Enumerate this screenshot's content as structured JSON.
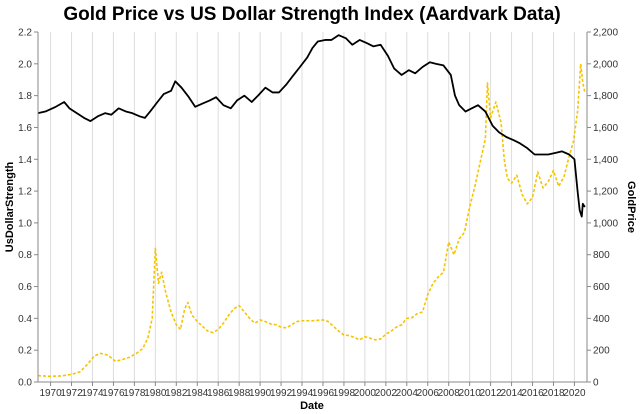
{
  "chart_data": {
    "type": "line",
    "title": "Gold Price vs US Dollar Strength Index (Aardvark Data)",
    "xlabel": "Date",
    "ylabel_left": "UsDollarStrength",
    "ylabel_right": "GoldPrice",
    "x_range": [
      1968.8,
      2021.2
    ],
    "ylim_left": [
      0,
      2.2
    ],
    "ylim_right": [
      0,
      2200
    ],
    "grid": "vertical",
    "x_ticks": [
      "1970",
      "1972",
      "1974",
      "1976",
      "1978",
      "1980",
      "1982",
      "1984",
      "1986",
      "1988",
      "1990",
      "1992",
      "1994",
      "1996",
      "1998",
      "2000",
      "2002",
      "2004",
      "2006",
      "2008",
      "2010",
      "2012",
      "2014",
      "2016",
      "2018",
      "2020"
    ],
    "y_left_ticks": [
      "0.0",
      "0.2",
      "0.4",
      "0.6",
      "0.8",
      "1.0",
      "1.2",
      "1.4",
      "1.6",
      "1.8",
      "2.0",
      "2.2"
    ],
    "y_right_ticks": [
      "0",
      "200",
      "400",
      "600",
      "800",
      "1,000",
      "1,200",
      "1,400",
      "1,600",
      "1,800",
      "2,000",
      "2,200"
    ],
    "series": [
      {
        "axis": "left",
        "color": "#000000",
        "style": "solid",
        "points": [
          [
            1968.8,
            1.69
          ],
          [
            1969.5,
            1.7
          ],
          [
            1970.5,
            1.73
          ],
          [
            1971.3,
            1.76
          ],
          [
            1971.8,
            1.72
          ],
          [
            1972.5,
            1.69
          ],
          [
            1973.2,
            1.66
          ],
          [
            1973.8,
            1.64
          ],
          [
            1974.5,
            1.67
          ],
          [
            1975.2,
            1.69
          ],
          [
            1975.8,
            1.68
          ],
          [
            1976.5,
            1.72
          ],
          [
            1977.2,
            1.7
          ],
          [
            1977.8,
            1.69
          ],
          [
            1978.5,
            1.67
          ],
          [
            1979.0,
            1.66
          ],
          [
            1979.5,
            1.7
          ],
          [
            1980.2,
            1.76
          ],
          [
            1980.8,
            1.81
          ],
          [
            1981.5,
            1.83
          ],
          [
            1981.9,
            1.89
          ],
          [
            1982.5,
            1.85
          ],
          [
            1983.2,
            1.79
          ],
          [
            1983.8,
            1.73
          ],
          [
            1984.5,
            1.75
          ],
          [
            1985.2,
            1.77
          ],
          [
            1985.8,
            1.79
          ],
          [
            1986.5,
            1.74
          ],
          [
            1987.2,
            1.72
          ],
          [
            1987.8,
            1.77
          ],
          [
            1988.5,
            1.8
          ],
          [
            1989.2,
            1.76
          ],
          [
            1989.8,
            1.8
          ],
          [
            1990.5,
            1.85
          ],
          [
            1991.2,
            1.82
          ],
          [
            1991.8,
            1.82
          ],
          [
            1992.5,
            1.87
          ],
          [
            1993.2,
            1.93
          ],
          [
            1993.8,
            1.98
          ],
          [
            1994.5,
            2.04
          ],
          [
            1995.0,
            2.1
          ],
          [
            1995.5,
            2.14
          ],
          [
            1996.2,
            2.15
          ],
          [
            1996.8,
            2.15
          ],
          [
            1997.5,
            2.18
          ],
          [
            1998.2,
            2.16
          ],
          [
            1998.8,
            2.12
          ],
          [
            1999.5,
            2.15
          ],
          [
            2000.2,
            2.13
          ],
          [
            2000.8,
            2.11
          ],
          [
            2001.5,
            2.12
          ],
          [
            2002.2,
            2.05
          ],
          [
            2002.8,
            1.97
          ],
          [
            2003.5,
            1.93
          ],
          [
            2004.2,
            1.96
          ],
          [
            2004.8,
            1.94
          ],
          [
            2005.5,
            1.98
          ],
          [
            2006.2,
            2.01
          ],
          [
            2006.8,
            2.0
          ],
          [
            2007.5,
            1.99
          ],
          [
            2008.2,
            1.93
          ],
          [
            2008.6,
            1.8
          ],
          [
            2009.0,
            1.74
          ],
          [
            2009.6,
            1.7
          ],
          [
            2010.2,
            1.72
          ],
          [
            2010.8,
            1.74
          ],
          [
            2011.5,
            1.7
          ],
          [
            2012.2,
            1.61
          ],
          [
            2012.8,
            1.57
          ],
          [
            2013.5,
            1.54
          ],
          [
            2014.2,
            1.52
          ],
          [
            2014.8,
            1.5
          ],
          [
            2015.5,
            1.47
          ],
          [
            2016.2,
            1.43
          ],
          [
            2016.8,
            1.43
          ],
          [
            2017.5,
            1.43
          ],
          [
            2018.2,
            1.44
          ],
          [
            2018.8,
            1.45
          ],
          [
            2019.5,
            1.43
          ],
          [
            2020.0,
            1.4
          ],
          [
            2020.3,
            1.2
          ],
          [
            2020.5,
            1.08
          ],
          [
            2020.7,
            1.04
          ],
          [
            2020.8,
            1.12
          ],
          [
            2021.0,
            1.1
          ]
        ]
      },
      {
        "axis": "right",
        "color": "#f5c400",
        "style": "dashed",
        "points": [
          [
            1968.8,
            40
          ],
          [
            1970.0,
            36
          ],
          [
            1971.0,
            38
          ],
          [
            1972.0,
            48
          ],
          [
            1972.8,
            64
          ],
          [
            1973.5,
            110
          ],
          [
            1974.2,
            165
          ],
          [
            1974.8,
            180
          ],
          [
            1975.5,
            168
          ],
          [
            1976.2,
            130
          ],
          [
            1976.8,
            140
          ],
          [
            1977.5,
            155
          ],
          [
            1978.2,
            180
          ],
          [
            1978.8,
            210
          ],
          [
            1979.3,
            280
          ],
          [
            1979.7,
            400
          ],
          [
            1980.0,
            840
          ],
          [
            1980.3,
            620
          ],
          [
            1980.6,
            690
          ],
          [
            1981.0,
            560
          ],
          [
            1981.5,
            440
          ],
          [
            1982.0,
            360
          ],
          [
            1982.4,
            330
          ],
          [
            1982.8,
            460
          ],
          [
            1983.1,
            500
          ],
          [
            1983.5,
            420
          ],
          [
            1984.0,
            380
          ],
          [
            1984.5,
            350
          ],
          [
            1985.0,
            320
          ],
          [
            1985.5,
            310
          ],
          [
            1986.0,
            330
          ],
          [
            1986.5,
            370
          ],
          [
            1987.0,
            420
          ],
          [
            1987.5,
            460
          ],
          [
            1988.0,
            480
          ],
          [
            1988.5,
            440
          ],
          [
            1989.0,
            400
          ],
          [
            1989.5,
            370
          ],
          [
            1990.0,
            390
          ],
          [
            1990.5,
            380
          ],
          [
            1991.0,
            365
          ],
          [
            1991.5,
            360
          ],
          [
            1992.0,
            345
          ],
          [
            1992.5,
            340
          ],
          [
            1993.0,
            360
          ],
          [
            1993.5,
            380
          ],
          [
            1994.0,
            385
          ],
          [
            1994.5,
            385
          ],
          [
            1995.0,
            385
          ],
          [
            1995.5,
            388
          ],
          [
            1996.0,
            390
          ],
          [
            1996.5,
            380
          ],
          [
            1997.0,
            350
          ],
          [
            1997.5,
            320
          ],
          [
            1998.0,
            295
          ],
          [
            1998.5,
            292
          ],
          [
            1999.0,
            280
          ],
          [
            1999.5,
            265
          ],
          [
            2000.0,
            285
          ],
          [
            2000.5,
            275
          ],
          [
            2001.0,
            265
          ],
          [
            2001.5,
            270
          ],
          [
            2002.0,
            300
          ],
          [
            2002.5,
            320
          ],
          [
            2003.0,
            345
          ],
          [
            2003.5,
            360
          ],
          [
            2004.0,
            400
          ],
          [
            2004.5,
            405
          ],
          [
            2005.0,
            430
          ],
          [
            2005.5,
            440
          ],
          [
            2006.0,
            550
          ],
          [
            2006.5,
            620
          ],
          [
            2007.0,
            660
          ],
          [
            2007.5,
            690
          ],
          [
            2008.0,
            880
          ],
          [
            2008.5,
            800
          ],
          [
            2009.0,
            900
          ],
          [
            2009.5,
            940
          ],
          [
            2010.0,
            1100
          ],
          [
            2010.5,
            1230
          ],
          [
            2011.0,
            1380
          ],
          [
            2011.5,
            1530
          ],
          [
            2011.7,
            1880
          ],
          [
            2012.0,
            1660
          ],
          [
            2012.5,
            1760
          ],
          [
            2013.0,
            1630
          ],
          [
            2013.3,
            1400
          ],
          [
            2013.6,
            1280
          ],
          [
            2014.0,
            1250
          ],
          [
            2014.5,
            1300
          ],
          [
            2015.0,
            1180
          ],
          [
            2015.5,
            1120
          ],
          [
            2016.0,
            1160
          ],
          [
            2016.5,
            1320
          ],
          [
            2017.0,
            1220
          ],
          [
            2017.5,
            1260
          ],
          [
            2018.0,
            1330
          ],
          [
            2018.5,
            1230
          ],
          [
            2019.0,
            1290
          ],
          [
            2019.5,
            1420
          ],
          [
            2019.9,
            1510
          ],
          [
            2020.3,
            1700
          ],
          [
            2020.6,
            2000
          ],
          [
            2020.8,
            1880
          ],
          [
            2021.0,
            1820
          ]
        ]
      }
    ]
  }
}
